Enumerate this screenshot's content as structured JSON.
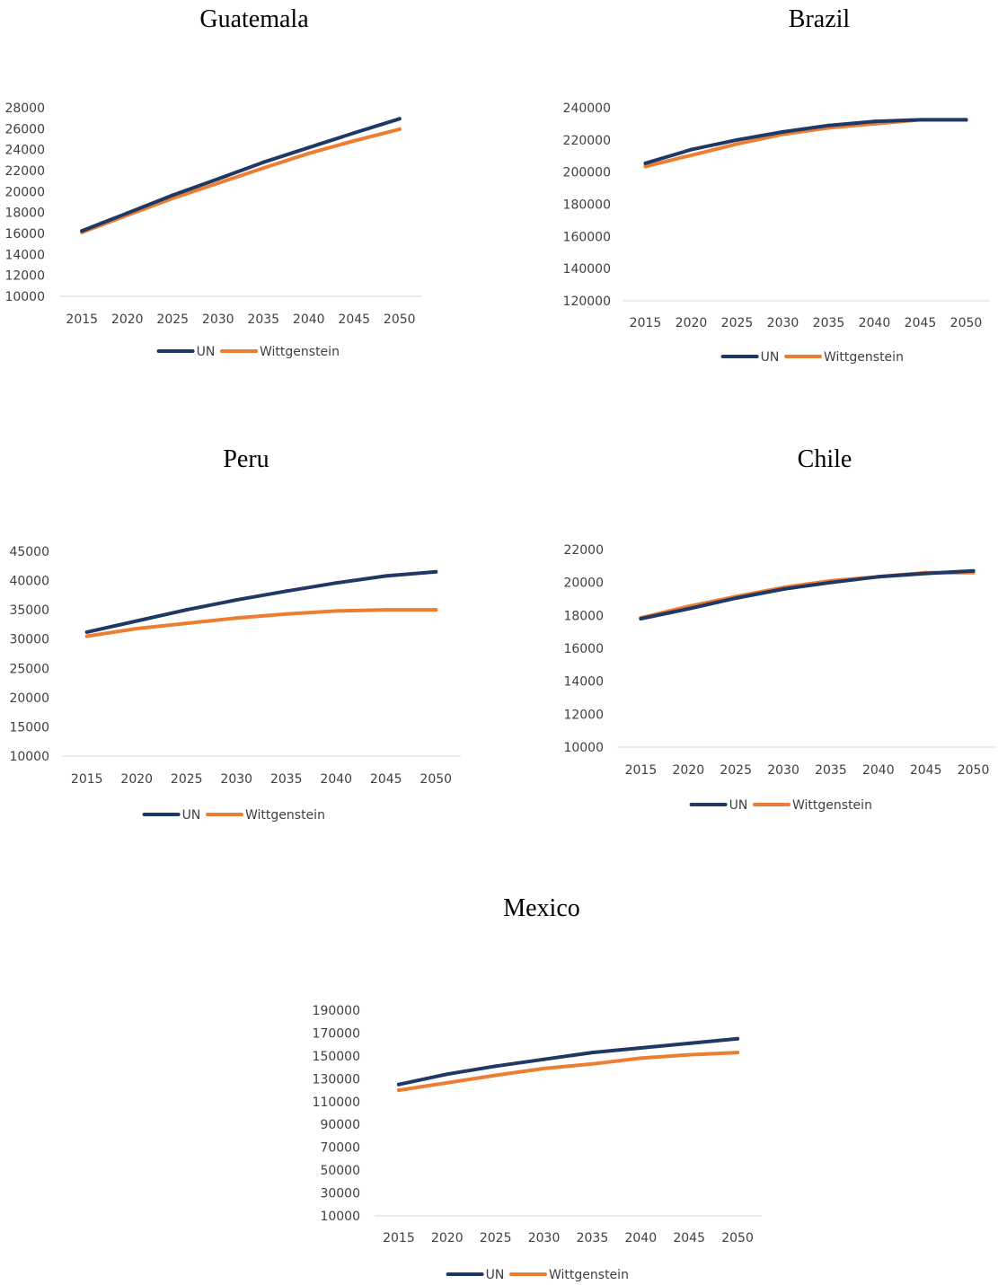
{
  "chart_data": [
    {
      "type": "line",
      "title": "Guatemala",
      "categories": [
        "2015",
        "2020",
        "2025",
        "2030",
        "2035",
        "2040",
        "2045",
        "2050"
      ],
      "yticks": [
        "10000",
        "12000",
        "14000",
        "16000",
        "18000",
        "20000",
        "22000",
        "24000",
        "26000",
        "28000"
      ],
      "ylim": [
        10000,
        28000
      ],
      "series": [
        {
          "name": "UN",
          "color": "#1f3864",
          "values": [
            16250,
            17950,
            19650,
            21200,
            22800,
            24200,
            25600,
            26950
          ]
        },
        {
          "name": "Wittgenstein",
          "color": "#ed7d31",
          "values": [
            16100,
            17750,
            19350,
            20800,
            22250,
            23650,
            24850,
            25950
          ]
        }
      ]
    },
    {
      "type": "line",
      "title": "Brazil",
      "categories": [
        "2015",
        "2020",
        "2025",
        "2030",
        "2035",
        "2040",
        "2045",
        "2050"
      ],
      "yticks": [
        "120000",
        "140000",
        "160000",
        "180000",
        "200000",
        "220000",
        "240000"
      ],
      "ylim": [
        120000,
        240000
      ],
      "series": [
        {
          "name": "UN",
          "color": "#1f3864",
          "values": [
            205500,
            214000,
            220000,
            225000,
            229000,
            231500,
            232500,
            232500
          ]
        },
        {
          "name": "Wittgenstein",
          "color": "#ed7d31",
          "values": [
            203500,
            210500,
            217500,
            223500,
            227500,
            230000,
            232500,
            232500
          ]
        }
      ]
    },
    {
      "type": "line",
      "title": "Peru",
      "categories": [
        "2015",
        "2020",
        "2025",
        "2030",
        "2035",
        "2040",
        "2045",
        "2050"
      ],
      "yticks": [
        "10000",
        "15000",
        "20000",
        "25000",
        "30000",
        "35000",
        "40000",
        "45000"
      ],
      "ylim": [
        10000,
        45000
      ],
      "series": [
        {
          "name": "UN",
          "color": "#1f3864",
          "values": [
            31200,
            33100,
            35000,
            36700,
            38200,
            39600,
            40800,
            41500
          ]
        },
        {
          "name": "Wittgenstein",
          "color": "#ed7d31",
          "values": [
            30500,
            31800,
            32700,
            33600,
            34300,
            34800,
            35000,
            35000
          ]
        }
      ]
    },
    {
      "type": "line",
      "title": "Chile",
      "categories": [
        "2015",
        "2020",
        "2025",
        "2030",
        "2035",
        "2040",
        "2045",
        "2050"
      ],
      "yticks": [
        "10000",
        "12000",
        "14000",
        "16000",
        "18000",
        "20000",
        "22000"
      ],
      "ylim": [
        10000,
        22000
      ],
      "series": [
        {
          "name": "UN",
          "color": "#1f3864",
          "values": [
            17800,
            18400,
            19050,
            19600,
            20000,
            20350,
            20550,
            20700
          ]
        },
        {
          "name": "Wittgenstein",
          "color": "#ed7d31",
          "values": [
            17850,
            18550,
            19150,
            19700,
            20100,
            20350,
            20600,
            20600
          ]
        }
      ]
    },
    {
      "type": "line",
      "title": "Mexico",
      "categories": [
        "2015",
        "2020",
        "2025",
        "2030",
        "2035",
        "2040",
        "2045",
        "2050"
      ],
      "yticks": [
        "10000",
        "30000",
        "50000",
        "70000",
        "90000",
        "110000",
        "130000",
        "150000",
        "170000",
        "190000"
      ],
      "ylim": [
        10000,
        190000
      ],
      "series": [
        {
          "name": "UN",
          "color": "#1f3864",
          "values": [
            125000,
            134000,
            141000,
            147000,
            153000,
            157000,
            161000,
            165000
          ]
        },
        {
          "name": "Wittgenstein",
          "color": "#ed7d31",
          "values": [
            120000,
            126500,
            133000,
            139000,
            143000,
            148000,
            151000,
            153000
          ]
        }
      ]
    }
  ]
}
